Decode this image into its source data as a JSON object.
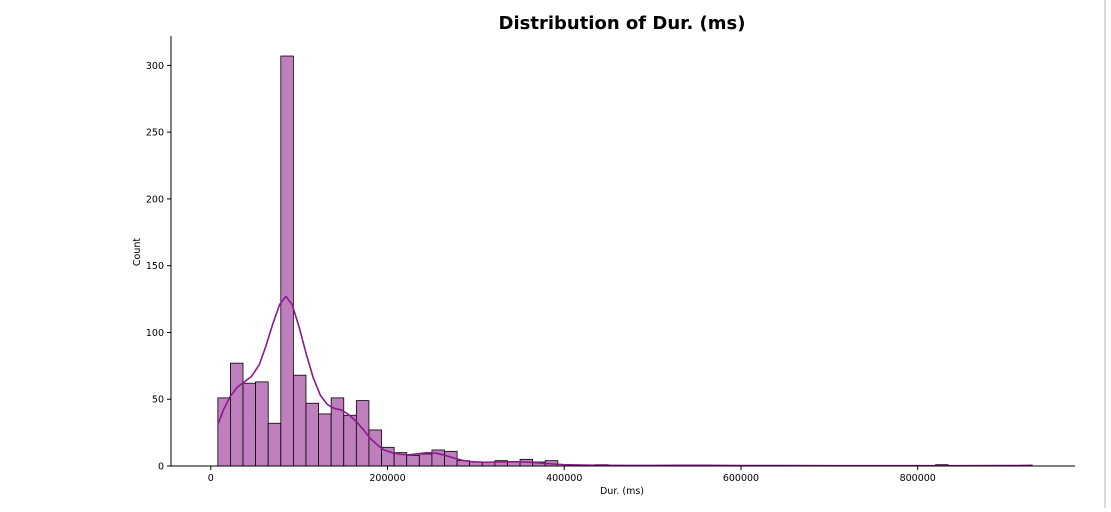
{
  "chart_data": {
    "type": "bar",
    "title": "Distribution of Dur. (ms)",
    "xlabel": "Dur. (ms)",
    "ylabel": "Count",
    "xlim": [
      -45000,
      978000
    ],
    "ylim": [
      0,
      322
    ],
    "xticks": [
      {
        "value": 0,
        "label": "0"
      },
      {
        "value": 200000,
        "label": "200000"
      },
      {
        "value": 400000,
        "label": "400000"
      },
      {
        "value": 600000,
        "label": "600000"
      },
      {
        "value": 800000,
        "label": "800000"
      }
    ],
    "yticks": [
      {
        "value": 0,
        "label": "0"
      },
      {
        "value": 50,
        "label": "50"
      },
      {
        "value": 100,
        "label": "100"
      },
      {
        "value": 150,
        "label": "150"
      },
      {
        "value": 200,
        "label": "200"
      },
      {
        "value": 250,
        "label": "250"
      },
      {
        "value": 300,
        "label": "300"
      }
    ],
    "bin_start": 8000,
    "bin_width": 14250,
    "counts": [
      51,
      77,
      62,
      63,
      32,
      307,
      68,
      47,
      39,
      51,
      38,
      49,
      27,
      14,
      10,
      8,
      9,
      12,
      11,
      4,
      3,
      3,
      4,
      3,
      5,
      3,
      4,
      0,
      0,
      0,
      1,
      0,
      0,
      0,
      0,
      0,
      0,
      0,
      0,
      0,
      0,
      0,
      0,
      0,
      0,
      0,
      0,
      0,
      0,
      0,
      0,
      0,
      0,
      0,
      0,
      0,
      0,
      1
    ],
    "kde": [
      [
        8000,
        31
      ],
      [
        15000,
        43
      ],
      [
        22000,
        52
      ],
      [
        30000,
        59
      ],
      [
        38000,
        63
      ],
      [
        46000,
        67
      ],
      [
        55000,
        76
      ],
      [
        62000,
        89
      ],
      [
        70000,
        106
      ],
      [
        78000,
        121
      ],
      [
        85000,
        127
      ],
      [
        92000,
        121
      ],
      [
        100000,
        104
      ],
      [
        108000,
        84
      ],
      [
        116000,
        66
      ],
      [
        124000,
        53
      ],
      [
        132000,
        46
      ],
      [
        140000,
        43
      ],
      [
        148000,
        42
      ],
      [
        157000,
        38
      ],
      [
        165000,
        33
      ],
      [
        173000,
        27
      ],
      [
        180000,
        21
      ],
      [
        188000,
        16
      ],
      [
        196000,
        12
      ],
      [
        205000,
        10
      ],
      [
        215000,
        8.7
      ],
      [
        225000,
        8.4
      ],
      [
        235000,
        9.2
      ],
      [
        245000,
        10
      ],
      [
        255000,
        9.6
      ],
      [
        265000,
        8
      ],
      [
        275000,
        6
      ],
      [
        285000,
        4.2
      ],
      [
        295000,
        3.2
      ],
      [
        310000,
        2.8
      ],
      [
        325000,
        3
      ],
      [
        340000,
        3.2
      ],
      [
        355000,
        3
      ],
      [
        370000,
        2.4
      ],
      [
        385000,
        1.6
      ],
      [
        400000,
        1
      ],
      [
        420000,
        0.7
      ],
      [
        440000,
        0.5
      ],
      [
        470000,
        0.4
      ],
      [
        500000,
        0.4
      ],
      [
        530000,
        0.5
      ],
      [
        560000,
        0.5
      ],
      [
        600000,
        0.35
      ],
      [
        650000,
        0.3
      ],
      [
        700000,
        0.25
      ],
      [
        750000,
        0.2
      ],
      [
        800000,
        0.2
      ],
      [
        850000,
        0.2
      ],
      [
        900000,
        0.3
      ],
      [
        930000,
        0.5
      ]
    ],
    "colors": {
      "bar_fill": "#bf7fbf",
      "bar_edge": "#000000",
      "kde_line": "#8b1a8b",
      "axis": "#000000"
    },
    "grid": false,
    "legend": "none"
  }
}
